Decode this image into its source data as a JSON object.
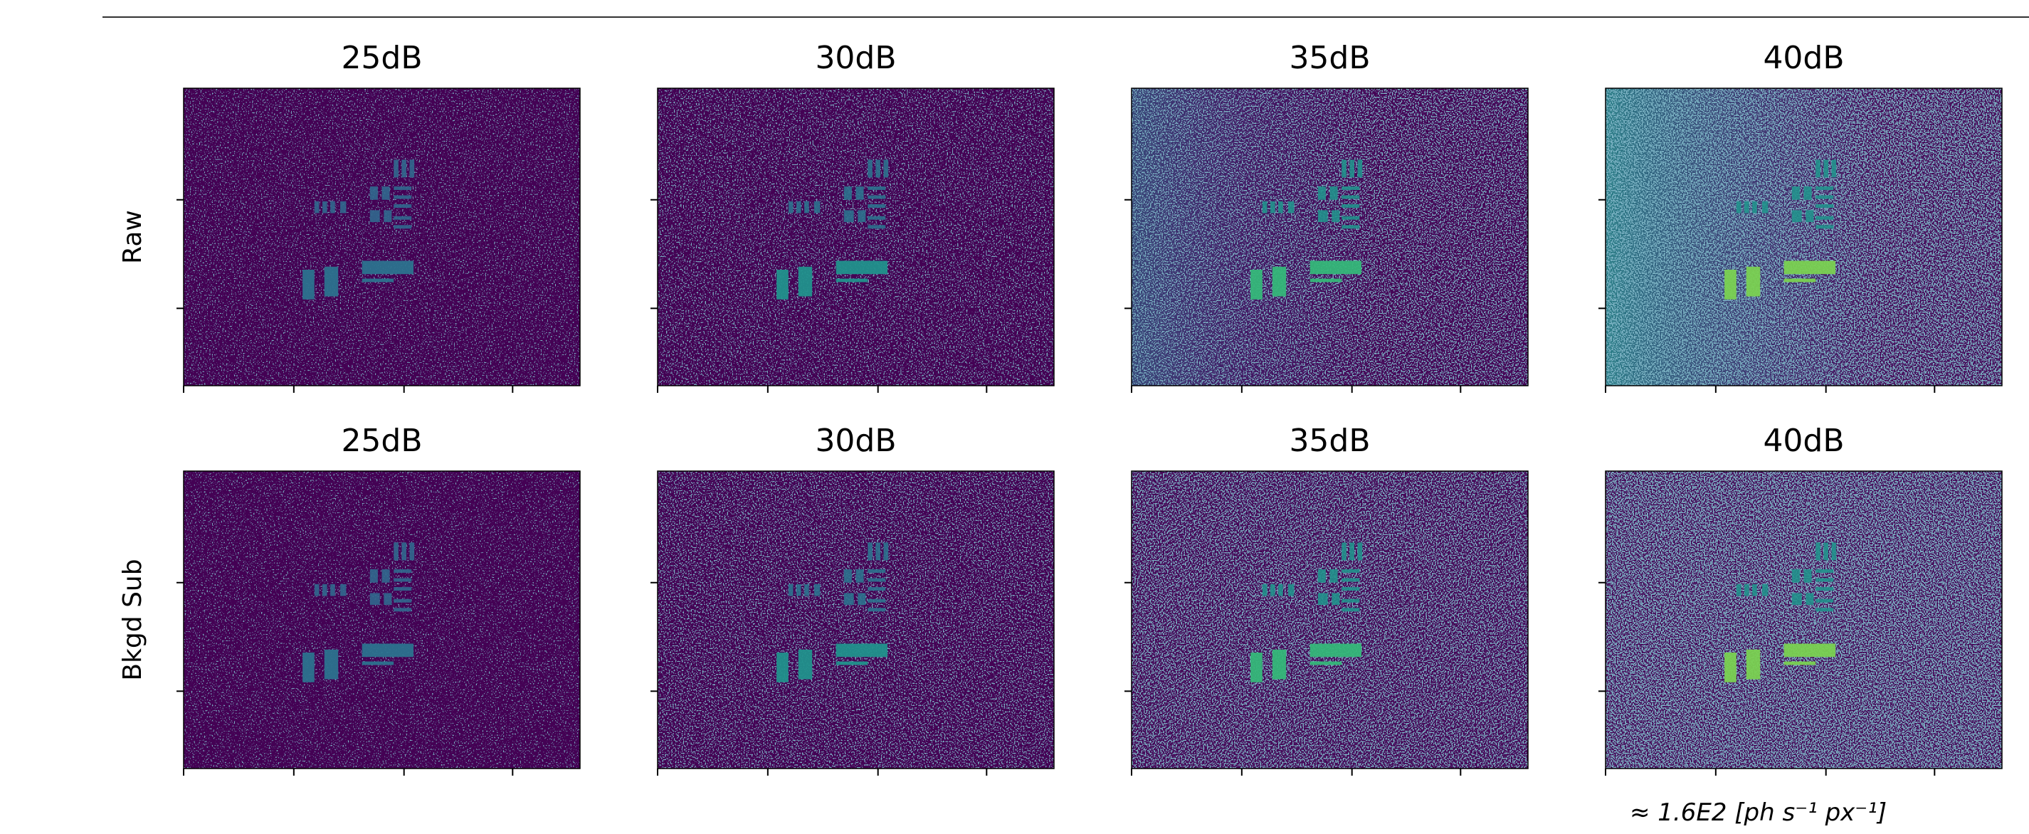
{
  "rows": [
    {
      "label": "Raw",
      "panels": [
        "25dB",
        "30dB",
        "35dB",
        "40dB"
      ]
    },
    {
      "label": "Bkgd Sub",
      "panels": [
        "25dB",
        "30dB",
        "35dB",
        "40dB"
      ]
    }
  ],
  "annotation": "≈ 1.6E2 [ph s⁻¹ px⁻¹]"
}
